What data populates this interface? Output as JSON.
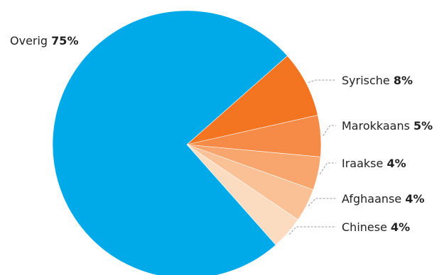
{
  "chart_data": {
    "type": "pie",
    "title": "",
    "start": "top-right",
    "direction": "clockwise",
    "slices": [
      {
        "label": "Syrische",
        "value": 8,
        "value_label": "8%",
        "color": "#f37421"
      },
      {
        "label": "Marokkaans",
        "value": 5,
        "value_label": "5%",
        "color": "#f58b46"
      },
      {
        "label": "Iraakse",
        "value": 4,
        "value_label": "4%",
        "color": "#f8a56e"
      },
      {
        "label": "Afghaanse",
        "value": 4,
        "value_label": "4%",
        "color": "#fac196"
      },
      {
        "label": "Chinese",
        "value": 4,
        "value_label": "4%",
        "color": "#fcdcc0"
      },
      {
        "label": "Overig",
        "value": 75,
        "value_label": "75%",
        "color": "#00a9e8"
      }
    ]
  }
}
